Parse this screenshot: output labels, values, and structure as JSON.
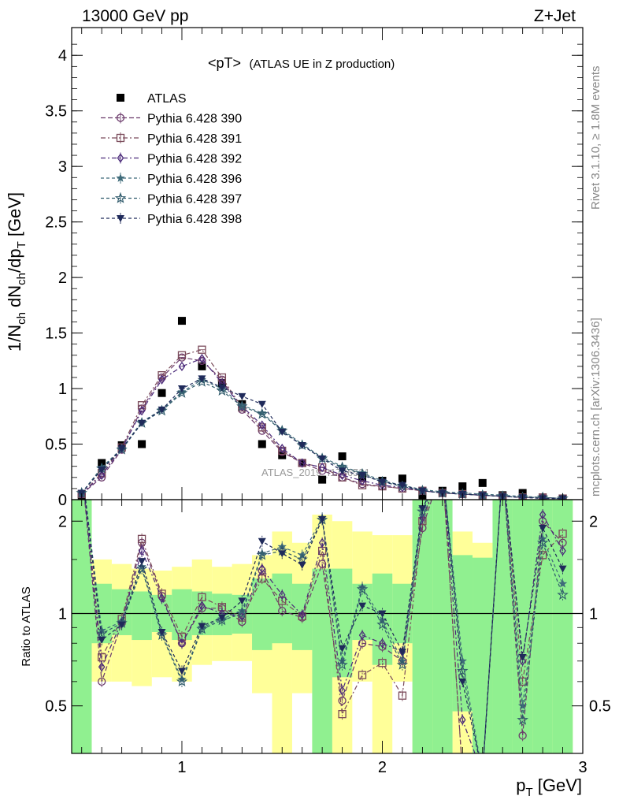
{
  "header": {
    "left": "13000 GeV pp",
    "right": "Z+Jet"
  },
  "side_labels": {
    "rivet": "Rivet 3.1.10, ≥ 1.8M events",
    "mcplots": "mcplots.cern.ch [arXiv:1306.3436]"
  },
  "watermark": "ATLAS_2019_I1736531",
  "chart_data": [
    {
      "panel": "main",
      "type": "scatter",
      "title_main": "<pT>",
      "title_sub": "(ATLAS UE in Z production)",
      "xlabel": "p_T [GeV]",
      "ylabel": "1/N_ch dN_ch/dp_T [GeV]",
      "xlim": [
        0.45,
        3.0
      ],
      "ylim": [
        0,
        4.25
      ],
      "yticks": [
        0,
        0.5,
        1,
        1.5,
        2,
        2.5,
        3,
        3.5,
        4
      ],
      "yticklabels": [
        "0",
        "0.5",
        "1",
        "1.5",
        "2",
        "2.5",
        "3",
        "3.5",
        "4"
      ],
      "legend_position": "top-left",
      "x": [
        0.5,
        0.6,
        0.7,
        0.8,
        0.9,
        1.0,
        1.1,
        1.2,
        1.3,
        1.4,
        1.5,
        1.6,
        1.7,
        1.8,
        1.9,
        2.0,
        2.1,
        2.2,
        2.3,
        2.4,
        2.5,
        2.6,
        2.7,
        2.8,
        2.9
      ],
      "series": [
        {
          "name": "ATLAS",
          "marker": "square-filled",
          "color": "#000000",
          "line": false,
          "values": [
            0.02,
            0.33,
            0.49,
            0.5,
            0.96,
            1.61,
            1.2,
            1.05,
            0.86,
            0.5,
            0.4,
            0.33,
            0.18,
            0.39,
            0.2,
            0.17,
            0.19,
            0.04,
            0.08,
            0.12,
            0.15,
            0.04,
            0.06,
            0.01,
            0.01
          ]
        },
        {
          "name": "Pythia 6.428 390",
          "marker": "circle-open",
          "color": "#6b3a6b",
          "dash": "6,3",
          "values": [
            0.05,
            0.2,
            0.45,
            0.82,
            1.1,
            1.28,
            1.25,
            1.08,
            0.81,
            0.62,
            0.43,
            0.33,
            0.26,
            0.2,
            0.14,
            0.12,
            0.1,
            0.08,
            0.06,
            0.05,
            0.04,
            0.03,
            0.02,
            0.02,
            0.01
          ]
        },
        {
          "name": "Pythia 6.428 391",
          "marker": "square-open",
          "color": "#7a4a5a",
          "dash": "6,3,2,3",
          "values": [
            0.05,
            0.24,
            0.47,
            0.85,
            1.12,
            1.3,
            1.35,
            1.1,
            0.83,
            0.65,
            0.44,
            0.33,
            0.29,
            0.2,
            0.13,
            0.12,
            0.1,
            0.08,
            0.06,
            0.05,
            0.04,
            0.03,
            0.02,
            0.02,
            0.01
          ]
        },
        {
          "name": "Pythia 6.428 392",
          "marker": "diamond-open",
          "color": "#4b2a7a",
          "dash": "6,3,2,3",
          "values": [
            0.05,
            0.22,
            0.46,
            0.8,
            1.08,
            1.2,
            1.27,
            1.05,
            0.84,
            0.67,
            0.46,
            0.33,
            0.29,
            0.22,
            0.17,
            0.13,
            0.11,
            0.08,
            0.06,
            0.05,
            0.04,
            0.03,
            0.02,
            0.02,
            0.01
          ]
        },
        {
          "name": "Pythia 6.428 396",
          "marker": "star-filled",
          "color": "#3f6b7a",
          "dash": "4,3",
          "values": [
            0.06,
            0.29,
            0.46,
            0.7,
            0.81,
            0.97,
            1.08,
            1.0,
            0.85,
            0.78,
            0.63,
            0.5,
            0.38,
            0.3,
            0.24,
            0.17,
            0.13,
            0.09,
            0.07,
            0.06,
            0.05,
            0.04,
            0.03,
            0.02,
            0.01
          ]
        },
        {
          "name": "Pythia 6.428 397",
          "marker": "star-open",
          "color": "#2f5a6b",
          "dash": "4,3",
          "values": [
            0.06,
            0.28,
            0.45,
            0.69,
            0.8,
            0.96,
            1.06,
            0.98,
            0.84,
            0.77,
            0.62,
            0.49,
            0.37,
            0.29,
            0.23,
            0.16,
            0.12,
            0.08,
            0.06,
            0.05,
            0.04,
            0.03,
            0.02,
            0.02,
            0.01
          ]
        },
        {
          "name": "Pythia 6.428 398",
          "marker": "triangle-down-filled",
          "color": "#1f2a5a",
          "dash": "4,3",
          "values": [
            0.06,
            0.27,
            0.46,
            0.69,
            0.81,
            1.0,
            1.09,
            1.01,
            0.93,
            0.86,
            0.61,
            0.49,
            0.37,
            0.26,
            0.22,
            0.16,
            0.13,
            0.08,
            0.06,
            0.05,
            0.04,
            0.03,
            0.02,
            0.01,
            0.01
          ]
        }
      ]
    },
    {
      "panel": "ratio",
      "type": "line",
      "ylabel": "Ratio to ATLAS",
      "xlabel": "p_T [GeV]",
      "xlim": [
        0.45,
        3.0
      ],
      "ylim": [
        0.35,
        2.35
      ],
      "yticks": [
        0.5,
        1,
        2
      ],
      "yticklabels": [
        "0.5",
        "1",
        "2"
      ],
      "xticks": [
        1,
        2,
        3
      ],
      "xticklabels": [
        "1",
        "2",
        "3"
      ],
      "reference_line": 1,
      "bands": {
        "green_color": "#90f090",
        "yellow_color": "#ffff99",
        "edges": [
          0.45,
          0.55,
          0.65,
          0.75,
          0.85,
          0.95,
          1.05,
          1.15,
          1.25,
          1.35,
          1.45,
          1.55,
          1.65,
          1.75,
          1.85,
          1.95,
          2.05,
          2.15,
          2.25,
          2.35,
          2.45,
          2.55,
          2.65,
          2.75,
          2.85,
          2.95
        ],
        "green_lo": [
          0.35,
          0.8,
          0.85,
          0.82,
          0.87,
          0.82,
          0.85,
          0.85,
          0.86,
          0.76,
          0.8,
          0.76,
          0.35,
          0.62,
          0.82,
          0.68,
          0.8,
          0.35,
          0.35,
          0.48,
          0.35,
          0.35,
          0.35,
          0.35,
          0.35
        ],
        "green_hi": [
          2.35,
          1.25,
          1.2,
          1.18,
          1.15,
          1.2,
          1.18,
          1.16,
          1.15,
          1.3,
          1.35,
          1.25,
          1.4,
          1.4,
          1.25,
          1.35,
          1.25,
          2.35,
          2.35,
          1.55,
          1.52,
          2.35,
          2.35,
          2.35,
          2.35
        ],
        "yellow_lo": [
          0.35,
          0.6,
          0.6,
          0.58,
          0.62,
          0.6,
          0.68,
          0.7,
          0.7,
          0.55,
          0.35,
          0.55,
          0.35,
          0.35,
          0.6,
          0.35,
          0.6,
          0.35,
          0.35,
          0.35,
          0.35,
          0.35,
          0.35,
          0.35,
          0.35
        ],
        "yellow_hi": [
          2.35,
          1.5,
          1.45,
          1.4,
          1.38,
          1.42,
          1.5,
          1.42,
          1.45,
          1.55,
          1.85,
          1.7,
          2.1,
          2.0,
          1.85,
          1.8,
          1.8,
          2.35,
          1.85,
          1.85,
          1.7,
          2.35,
          2.35,
          2.35,
          2.35
        ]
      },
      "x": [
        0.5,
        0.6,
        0.7,
        0.8,
        0.9,
        1.0,
        1.1,
        1.2,
        1.3,
        1.4,
        1.5,
        1.6,
        1.7,
        1.8,
        1.9,
        2.0,
        2.1,
        2.2,
        2.3,
        2.4,
        2.5,
        2.6,
        2.7,
        2.8,
        2.9
      ],
      "series": [
        {
          "name": "Pythia 6.428 390",
          "marker": "circle-open",
          "color": "#6b3a6b",
          "dash": "6,3",
          "values": [
            3.0,
            0.6,
            0.93,
            1.7,
            1.14,
            0.8,
            1.04,
            1.04,
            0.94,
            1.38,
            1.02,
            0.97,
            1.45,
            0.52,
            0.8,
            0.78,
            0.7,
            1.9,
            3.0,
            0.3,
            0.3,
            3.0,
            0.4,
            2.0,
            1.7
          ]
        },
        {
          "name": "Pythia 6.428 391",
          "marker": "square-open",
          "color": "#7a4a5a",
          "dash": "6,3,2,3",
          "values": [
            3.0,
            0.72,
            0.96,
            1.75,
            1.16,
            0.84,
            1.13,
            1.05,
            0.97,
            1.3,
            1.1,
            0.98,
            1.6,
            0.47,
            0.63,
            0.69,
            0.54,
            2.0,
            3.0,
            0.3,
            0.3,
            3.0,
            0.6,
            1.55,
            1.82
          ]
        },
        {
          "name": "Pythia 6.428 392",
          "marker": "diamond-open",
          "color": "#4b2a7a",
          "dash": "6,3,2,3",
          "values": [
            3.0,
            0.67,
            0.94,
            1.6,
            1.12,
            0.8,
            1.06,
            1.0,
            0.98,
            1.4,
            1.15,
            0.99,
            1.7,
            0.56,
            0.85,
            0.8,
            0.75,
            2.05,
            3.0,
            0.45,
            0.3,
            3.0,
            0.7,
            2.1,
            1.6
          ]
        },
        {
          "name": "Pythia 6.428 396",
          "marker": "star-filled",
          "color": "#3f6b7a",
          "dash": "4,3",
          "values": [
            3.0,
            0.88,
            0.94,
            1.42,
            0.86,
            0.61,
            0.9,
            0.96,
            1.02,
            1.57,
            1.65,
            1.55,
            2.05,
            0.7,
            1.22,
            0.95,
            0.7,
            2.2,
            3.0,
            0.7,
            0.3,
            3.0,
            0.5,
            1.75,
            1.25
          ]
        },
        {
          "name": "Pythia 6.428 397",
          "marker": "star-open",
          "color": "#2f5a6b",
          "dash": "4,3",
          "values": [
            3.0,
            0.86,
            0.93,
            1.4,
            0.85,
            0.6,
            0.89,
            0.95,
            1.0,
            1.55,
            1.6,
            1.5,
            2.02,
            0.68,
            1.2,
            0.92,
            0.68,
            2.15,
            3.0,
            0.65,
            0.3,
            3.0,
            0.45,
            1.7,
            1.15
          ]
        },
        {
          "name": "Pythia 6.428 398",
          "marker": "triangle-down-filled",
          "color": "#1f2a5a",
          "dash": "4,3",
          "values": [
            3.0,
            0.82,
            0.92,
            1.48,
            0.87,
            0.65,
            0.91,
            0.97,
            1.1,
            1.72,
            1.57,
            1.44,
            2.03,
            0.77,
            1.06,
            1.0,
            0.75,
            2.2,
            3.0,
            0.6,
            0.3,
            3.0,
            0.72,
            1.9,
            1.4
          ]
        }
      ]
    }
  ]
}
